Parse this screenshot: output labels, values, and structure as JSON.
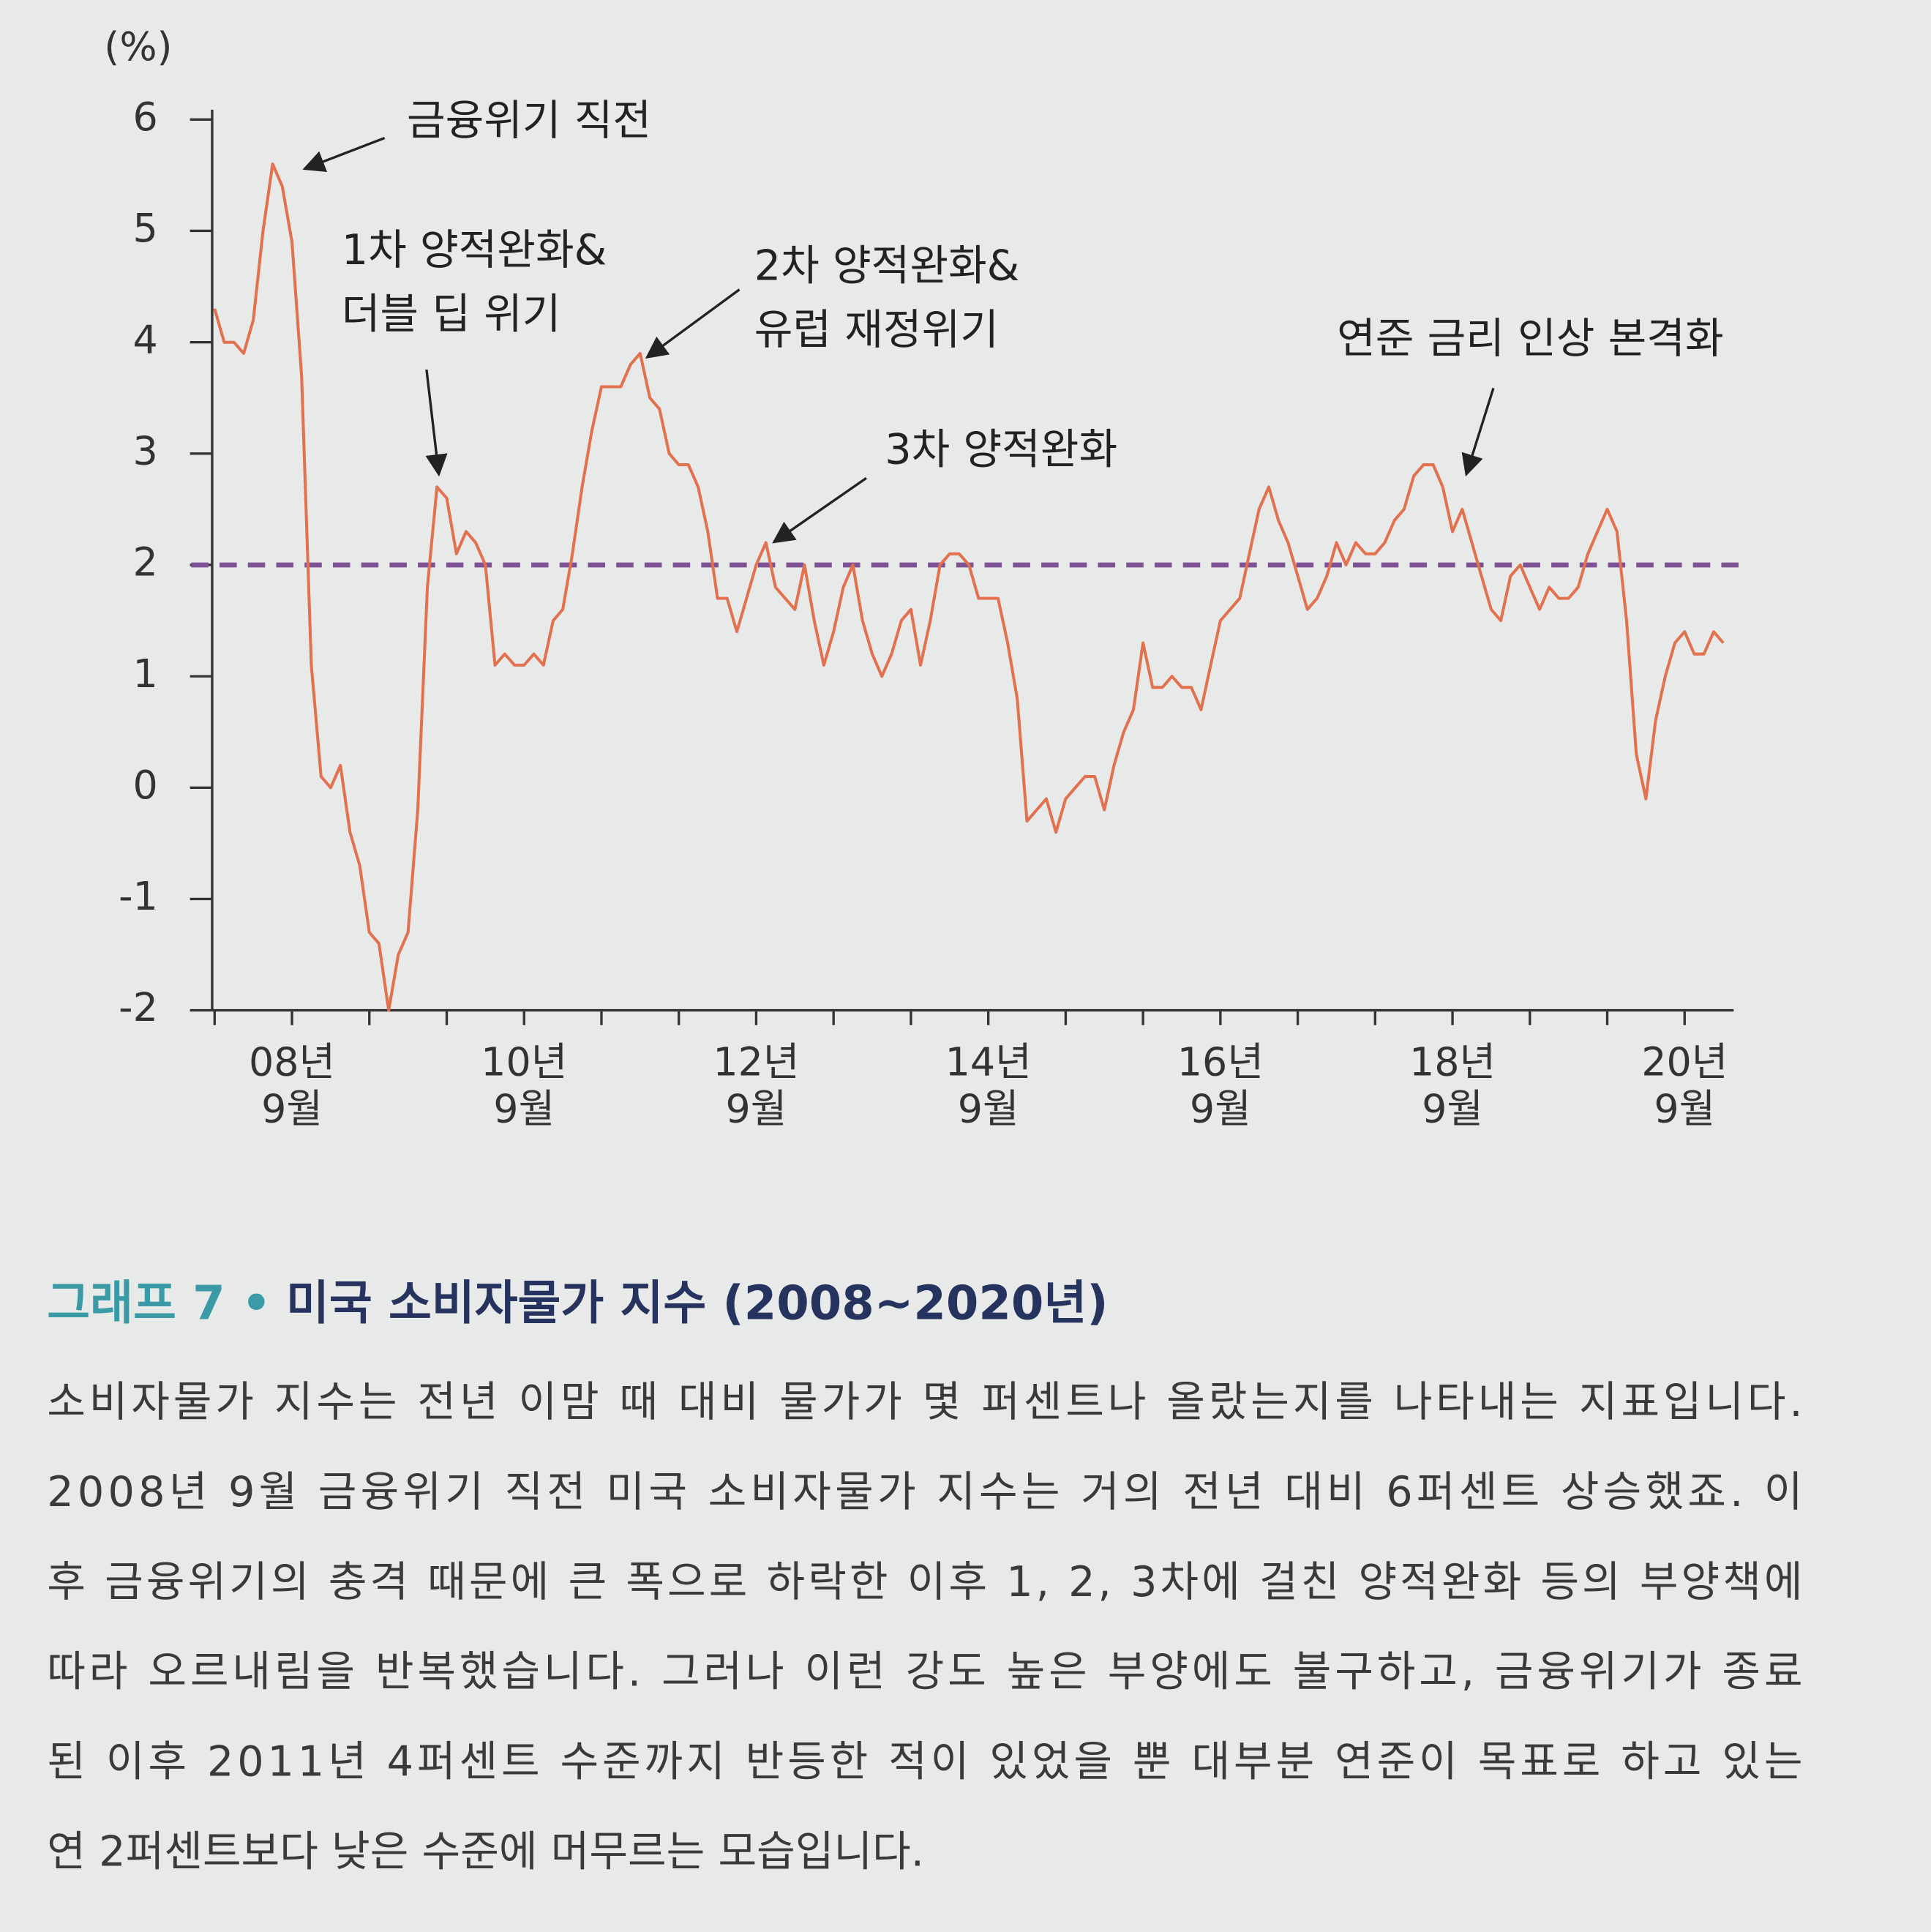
{
  "chart_data": {
    "type": "line",
    "y_label": "(%)",
    "figure_label": "그래프 7 •",
    "title": "미국 소비자물가 지수 (2008~2020년)",
    "categories": [
      null,
      null,
      null,
      null,
      null,
      null,
      null,
      null,
      [
        "08년",
        "9월"
      ],
      null,
      null,
      null,
      null,
      null,
      null,
      null,
      null,
      null,
      null,
      null,
      null,
      null,
      null,
      null,
      null,
      null,
      null,
      null,
      null,
      null,
      null,
      null,
      [
        "10년",
        "9월"
      ],
      null,
      null,
      null,
      null,
      null,
      null,
      null,
      null,
      null,
      null,
      null,
      null,
      null,
      null,
      null,
      null,
      null,
      null,
      null,
      null,
      null,
      null,
      null,
      [
        "12년",
        "9월"
      ],
      null,
      null,
      null,
      null,
      null,
      null,
      null,
      null,
      null,
      null,
      null,
      null,
      null,
      null,
      null,
      null,
      null,
      null,
      null,
      null,
      null,
      null,
      null,
      [
        "14년",
        "9월"
      ],
      null,
      null,
      null,
      null,
      null,
      null,
      null,
      null,
      null,
      null,
      null,
      null,
      null,
      null,
      null,
      null,
      null,
      null,
      null,
      null,
      null,
      null,
      null,
      [
        "16년",
        "9월"
      ],
      null,
      null,
      null,
      null,
      null,
      null,
      null,
      null,
      null,
      null,
      null,
      null,
      null,
      null,
      null,
      null,
      null,
      null,
      null,
      null,
      null,
      null,
      null,
      [
        "18년",
        "9월"
      ],
      null,
      null,
      null,
      null,
      null,
      null,
      null,
      null,
      null,
      null,
      null,
      null,
      null,
      null,
      null,
      null,
      null,
      null,
      null,
      null,
      null,
      null,
      null,
      [
        "20년",
        "9월"
      ],
      null,
      null,
      null,
      null
    ],
    "series": [
      {
        "color": "#e2714f",
        "values": [
          4.3,
          4.0,
          4.0,
          3.9,
          4.2,
          5.0,
          5.6,
          5.4,
          4.9,
          3.7,
          1.1,
          0.1,
          0.0,
          0.2,
          -0.4,
          -0.7,
          -1.3,
          -1.4,
          -2.0,
          -1.5,
          -1.3,
          -0.2,
          1.8,
          2.7,
          2.6,
          2.1,
          2.3,
          2.2,
          2.0,
          1.1,
          1.2,
          1.1,
          1.1,
          1.2,
          1.1,
          1.5,
          1.6,
          2.1,
          2.7,
          3.2,
          3.6,
          3.6,
          3.6,
          3.8,
          3.9,
          3.5,
          3.4,
          3.0,
          2.9,
          2.9,
          2.7,
          2.3,
          1.7,
          1.7,
          1.4,
          1.7,
          2.0,
          2.2,
          1.8,
          1.7,
          1.6,
          2.0,
          1.5,
          1.1,
          1.4,
          1.8,
          2.0,
          1.5,
          1.2,
          1.0,
          1.2,
          1.5,
          1.6,
          1.1,
          1.5,
          2.0,
          2.1,
          2.1,
          2.0,
          1.7,
          1.7,
          1.7,
          1.3,
          0.8,
          -0.3,
          -0.2,
          -0.1,
          -0.4,
          -0.1,
          0.0,
          0.1,
          0.1,
          -0.2,
          0.2,
          0.5,
          0.7,
          1.3,
          0.9,
          0.9,
          1.0,
          0.9,
          0.9,
          0.7,
          1.1,
          1.5,
          1.6,
          1.7,
          2.1,
          2.5,
          2.7,
          2.4,
          2.2,
          1.9,
          1.6,
          1.7,
          1.9,
          2.2,
          2.0,
          2.2,
          2.1,
          2.1,
          2.2,
          2.4,
          2.5,
          2.8,
          2.9,
          2.9,
          2.7,
          2.3,
          2.5,
          2.2,
          1.9,
          1.6,
          1.5,
          1.9,
          2.0,
          1.8,
          1.6,
          1.8,
          1.7,
          1.7,
          1.8,
          2.1,
          2.3,
          2.5,
          2.3,
          1.5,
          0.3,
          -0.1,
          0.6,
          1.0,
          1.3,
          1.4,
          1.2,
          1.2,
          1.4,
          1.3
        ]
      }
    ],
    "reference_line": {
      "value": 2,
      "color": "#7d5394",
      "style": "dashed"
    },
    "ylim": [
      -2,
      6
    ],
    "yticks": [
      -2,
      -1,
      0,
      1,
      2,
      3,
      4,
      5,
      6
    ],
    "annotations": [
      [
        "금융위기 직전"
      ],
      [
        "1차 양적완화&",
        "더블 딥 위기"
      ],
      [
        "2차 양적완화&",
        "유럽 재정위기"
      ],
      [
        "3차 양적완화"
      ],
      [
        "연준 금리 인상 본격화"
      ]
    ]
  },
  "body": [
    "소비자물가 지수는 전년 이맘 때 대비 물가가 몇 퍼센트나 올랐는지를 나타내는 지표입니다.",
    "2008년 9월 금융위기 직전 미국 소비자물가 지수는 거의 전년 대비 6퍼센트 상승했죠. 이",
    "후 금융위기의 충격 때문에 큰 폭으로 하락한 이후 1, 2, 3차에 걸친 양적완화 등의 부양책에",
    "따라 오르내림을 반복했습니다. 그러나 이런 강도 높은 부양에도 불구하고, 금융위기가 종료",
    "된 이후 2011년 4퍼센트 수준까지 반등한 적이 있었을 뿐 대부분 연준이 목표로 하고 있는",
    "연 2퍼센트보다 낮은 수준에 머무르는 모습입니다."
  ]
}
